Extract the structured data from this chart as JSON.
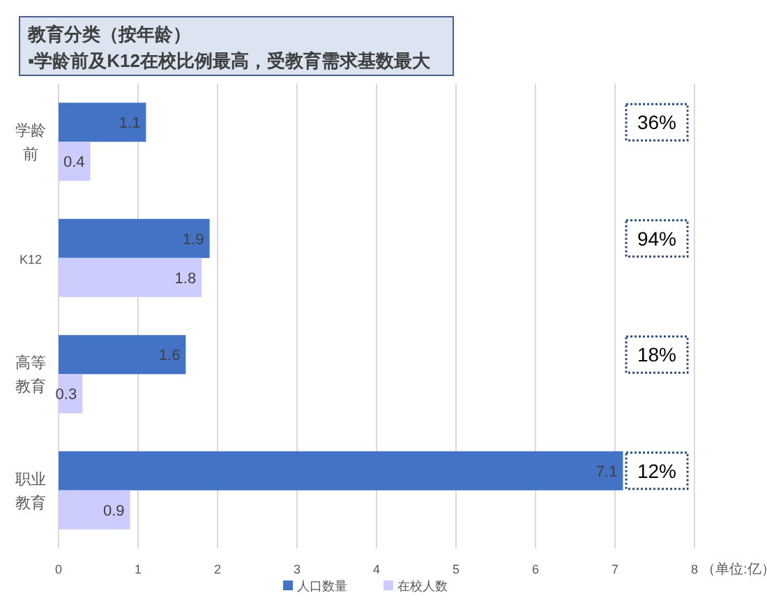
{
  "chart_data": {
    "type": "bar",
    "orientation": "horizontal",
    "title": "教育分类（按年龄）",
    "subtitle": "▪学龄前及K12在校比例最高，受教育需求基数最大",
    "categories": [
      "学龄前",
      "K12",
      "高等教育",
      "职业教育"
    ],
    "series": [
      {
        "name": "人口数量",
        "color": "#4472c4",
        "values": [
          1.1,
          1.9,
          1.6,
          7.1
        ]
      },
      {
        "name": "在校人数",
        "color": "#ccccff",
        "values": [
          0.4,
          1.8,
          0.3,
          0.9
        ]
      }
    ],
    "xlim": [
      0,
      8
    ],
    "xticks": [
      0,
      1,
      2,
      3,
      4,
      5,
      6,
      7,
      8
    ],
    "xlabel": "（单位:亿）",
    "grid": "x",
    "legend": "bottom",
    "data_labels": true,
    "annotations": [
      "36%",
      "94%",
      "18%",
      "12%"
    ]
  }
}
